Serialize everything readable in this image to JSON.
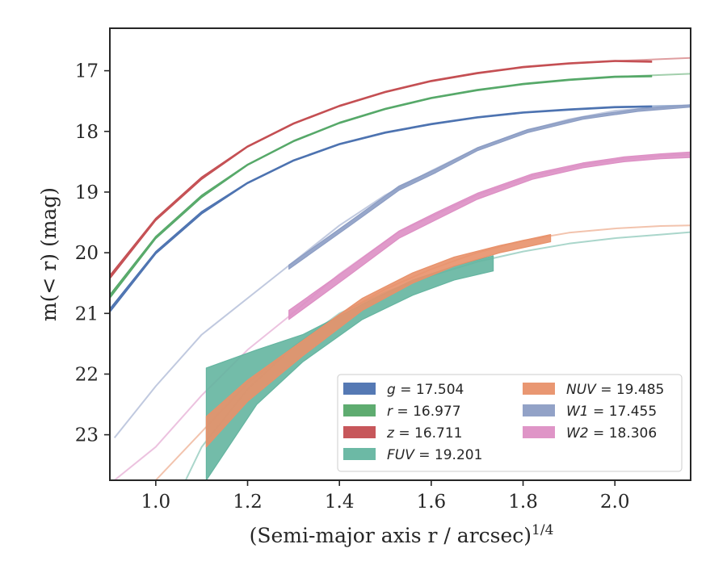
{
  "chart_data": {
    "type": "line",
    "xlabel": "(Semi-major axis r / arcsec)",
    "xlabel_exponent": "1/4",
    "ylabel": "m(< r) (mag)",
    "xlim": [
      0.9,
      2.165
    ],
    "ylim": [
      23.75,
      16.3
    ],
    "y_inverted": true,
    "grid": false,
    "legend_position": "lower-right",
    "xticks": [
      {
        "value": 1.0,
        "label": "1.0"
      },
      {
        "value": 1.2,
        "label": "1.2"
      },
      {
        "value": 1.4,
        "label": "1.4"
      },
      {
        "value": 1.6,
        "label": "1.6"
      },
      {
        "value": 1.8,
        "label": "1.8"
      },
      {
        "value": 2.0,
        "label": "2.0"
      }
    ],
    "yticks": [
      {
        "value": 17,
        "label": "17"
      },
      {
        "value": 18,
        "label": "18"
      },
      {
        "value": 19,
        "label": "19"
      },
      {
        "value": 20,
        "label": "20"
      },
      {
        "value": 21,
        "label": "21"
      },
      {
        "value": 22,
        "label": "22"
      },
      {
        "value": 23,
        "label": "23"
      }
    ],
    "series": [
      {
        "name": "g = 17.504",
        "symbol": "g",
        "value": "17.504",
        "color": "#4c72b0",
        "model": {
          "x": [
            0.9,
            1.0,
            1.1,
            1.2,
            1.3,
            1.4,
            1.5,
            1.6,
            1.7,
            1.8,
            1.9,
            2.0,
            2.1,
            2.165
          ],
          "y": [
            20.95,
            20.0,
            19.34,
            18.85,
            18.48,
            18.21,
            18.02,
            17.88,
            17.77,
            17.69,
            17.64,
            17.6,
            17.58,
            17.57
          ]
        },
        "data": {
          "x": [
            0.9,
            1.0,
            1.1,
            1.2,
            1.3,
            1.4,
            1.5,
            1.6,
            1.7,
            1.8,
            1.9,
            2.0,
            2.08
          ],
          "lo": [
            20.92,
            19.98,
            19.32,
            18.84,
            18.47,
            18.2,
            18.01,
            17.87,
            17.76,
            17.68,
            17.63,
            17.59,
            17.58
          ],
          "hi": [
            20.98,
            20.02,
            19.36,
            18.86,
            18.49,
            18.22,
            18.03,
            17.89,
            17.78,
            17.7,
            17.65,
            17.61,
            17.6
          ]
        }
      },
      {
        "name": "r = 16.977",
        "symbol": "r",
        "value": "16.977",
        "color": "#55a868",
        "model": {
          "x": [
            0.9,
            1.0,
            1.1,
            1.2,
            1.3,
            1.4,
            1.5,
            1.6,
            1.7,
            1.8,
            1.9,
            2.0,
            2.1,
            2.165
          ],
          "y": [
            20.72,
            19.75,
            19.07,
            18.55,
            18.16,
            17.86,
            17.63,
            17.45,
            17.32,
            17.22,
            17.15,
            17.1,
            17.07,
            17.05
          ]
        },
        "data": {
          "x": [
            0.9,
            1.0,
            1.1,
            1.2,
            1.3,
            1.4,
            1.5,
            1.6,
            1.7,
            1.8,
            1.9,
            2.0,
            2.08
          ],
          "lo": [
            20.69,
            19.73,
            19.05,
            18.54,
            18.15,
            17.85,
            17.62,
            17.44,
            17.31,
            17.21,
            17.14,
            17.09,
            17.08
          ],
          "hi": [
            20.75,
            19.77,
            19.09,
            18.56,
            18.17,
            17.87,
            17.64,
            17.46,
            17.33,
            17.23,
            17.16,
            17.11,
            17.1
          ]
        }
      },
      {
        "name": "z = 16.711",
        "symbol": "z",
        "value": "16.711",
        "color": "#c44e52",
        "model": {
          "x": [
            0.9,
            1.0,
            1.1,
            1.2,
            1.3,
            1.4,
            1.5,
            1.6,
            1.7,
            1.8,
            1.9,
            2.0,
            2.1,
            2.165
          ],
          "y": [
            20.4,
            19.45,
            18.77,
            18.25,
            17.87,
            17.58,
            17.35,
            17.17,
            17.04,
            16.94,
            16.88,
            16.84,
            16.81,
            16.79
          ]
        },
        "data": {
          "x": [
            0.9,
            1.0,
            1.1,
            1.2,
            1.3,
            1.4,
            1.5,
            1.6,
            1.7,
            1.8,
            1.9,
            2.0,
            2.08
          ],
          "lo": [
            20.37,
            19.43,
            18.75,
            18.24,
            17.86,
            17.57,
            17.34,
            17.16,
            17.03,
            16.93,
            16.87,
            16.83,
            16.84
          ],
          "hi": [
            20.43,
            19.47,
            18.79,
            18.26,
            17.88,
            17.59,
            17.36,
            17.18,
            17.05,
            16.95,
            16.89,
            16.85,
            16.86
          ]
        }
      },
      {
        "name": "FUV = 19.201",
        "symbol": "FUV",
        "value": "19.201",
        "color": "#64b5a0",
        "model": {
          "x": [
            1.065,
            1.1,
            1.2,
            1.3,
            1.4,
            1.5,
            1.6,
            1.7,
            1.8,
            1.9,
            2.0,
            2.1,
            2.165
          ],
          "y": [
            23.75,
            23.2,
            22.25,
            21.55,
            21.0,
            20.65,
            20.38,
            20.15,
            19.98,
            19.85,
            19.76,
            19.7,
            19.66
          ]
        },
        "data": {
          "x": [
            1.11,
            1.22,
            1.32,
            1.45,
            1.56,
            1.65,
            1.735
          ],
          "lo": [
            21.9,
            21.6,
            21.35,
            20.85,
            20.45,
            20.22,
            20.05
          ],
          "hi": [
            23.75,
            22.5,
            21.8,
            21.1,
            20.7,
            20.45,
            20.3
          ]
        }
      },
      {
        "name": "NUV = 19.485",
        "symbol": "NUV",
        "value": "19.485",
        "color": "#e8916a",
        "model": {
          "x": [
            1.0,
            1.1,
            1.2,
            1.3,
            1.4,
            1.5,
            1.6,
            1.7,
            1.8,
            1.9,
            2.0,
            2.1,
            2.165
          ],
          "y": [
            23.75,
            22.95,
            22.15,
            21.55,
            21.02,
            20.6,
            20.27,
            20.0,
            19.8,
            19.67,
            19.6,
            19.56,
            19.55
          ]
        },
        "data": {
          "x": [
            1.11,
            1.2,
            1.32,
            1.45,
            1.56,
            1.65,
            1.75,
            1.86
          ],
          "lo": [
            22.7,
            22.1,
            21.45,
            20.75,
            20.33,
            20.07,
            19.88,
            19.7
          ],
          "hi": [
            23.2,
            22.45,
            21.7,
            20.95,
            20.5,
            20.22,
            20.0,
            19.82
          ]
        }
      },
      {
        "name": "W1 = 17.455",
        "symbol": "W1",
        "value": "17.455",
        "color": "#8c9dc4",
        "model": {
          "x": [
            0.91,
            1.0,
            1.1,
            1.2,
            1.3,
            1.4,
            1.5,
            1.6,
            1.7,
            1.8,
            1.9,
            2.0,
            2.1,
            2.165
          ],
          "y": [
            23.05,
            22.2,
            21.35,
            20.75,
            20.15,
            19.55,
            19.05,
            18.65,
            18.28,
            18.0,
            17.8,
            17.66,
            17.6,
            17.57
          ]
        },
        "data": {
          "x": [
            1.29,
            1.42,
            1.53,
            1.61,
            1.7,
            1.81,
            1.93,
            2.05,
            2.165
          ],
          "lo": [
            20.2,
            19.5,
            18.9,
            18.62,
            18.27,
            17.97,
            17.76,
            17.63,
            17.56
          ],
          "hi": [
            20.27,
            19.57,
            18.97,
            18.68,
            18.32,
            18.02,
            17.8,
            17.67,
            17.6
          ]
        }
      },
      {
        "name": "W2 = 18.306",
        "symbol": "W2",
        "value": "18.306",
        "color": "#dd8fc4",
        "model": {
          "x": [
            0.91,
            1.0,
            1.1,
            1.2,
            1.29,
            1.4,
            1.53,
            1.7,
            1.82,
            1.93,
            2.02,
            2.1,
            2.165
          ],
          "y": [
            23.75,
            23.2,
            22.35,
            21.6,
            21.05,
            20.35,
            19.65,
            19.05,
            18.73,
            18.55,
            18.45,
            18.4,
            18.38
          ]
        },
        "data": {
          "x": [
            1.29,
            1.42,
            1.53,
            1.61,
            1.7,
            1.82,
            1.93,
            2.02,
            2.1,
            2.165
          ],
          "lo": [
            20.95,
            20.25,
            19.64,
            19.34,
            19.02,
            18.7,
            18.52,
            18.42,
            18.37,
            18.34
          ],
          "hi": [
            21.1,
            20.38,
            19.76,
            19.46,
            19.12,
            18.79,
            18.6,
            18.5,
            18.45,
            18.43
          ]
        }
      }
    ]
  }
}
